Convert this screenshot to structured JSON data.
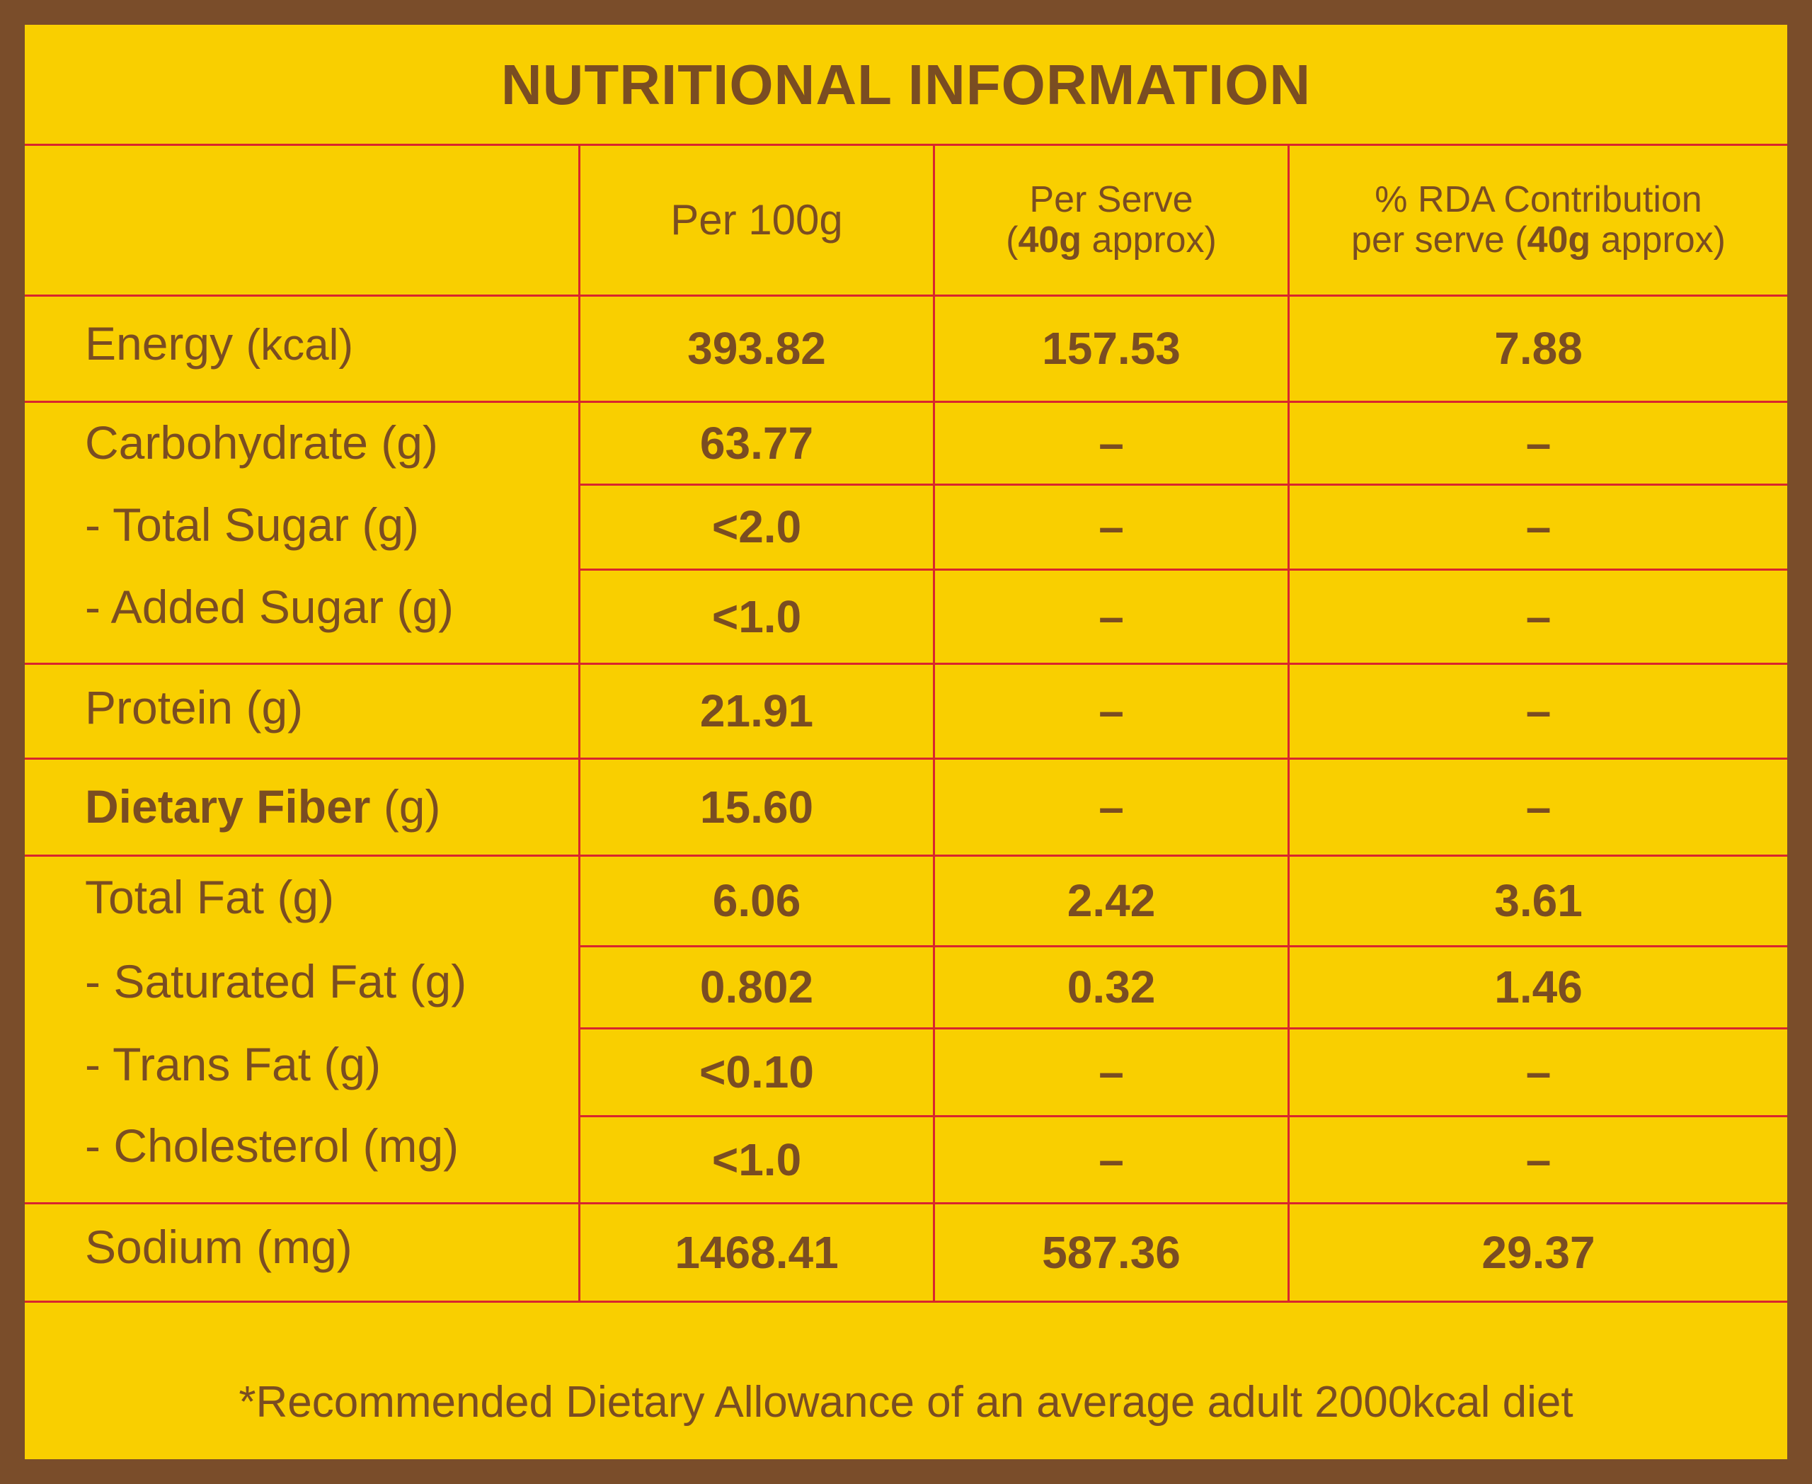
{
  "title": "NUTRITIONAL INFORMATION",
  "header": {
    "col1": "Per 100g",
    "col2_line1": "Per Serve",
    "col2_l2_open": "(",
    "col2_l2_bold": "40g",
    "col2_l2_rest": " approx)",
    "col3_line1": "% RDA Contribution",
    "col3_l2_pre": "per serve (",
    "col3_l2_bold": "40g",
    "col3_l2_rest": " approx)"
  },
  "rows": [
    {
      "name": "Energy",
      "unit": "(kcal)",
      "per100": "393.82",
      "serve": "157.53",
      "rda": "7.88"
    },
    {
      "name": "Carbohydrate",
      "unit": "(g)",
      "per100": "63.77",
      "serve": "–",
      "rda": "–"
    },
    {
      "name": "- Total Sugar",
      "unit": "(g)",
      "per100": "<2.0",
      "serve": "–",
      "rda": "–"
    },
    {
      "name": "- Added Sugar",
      "unit": "(g)",
      "per100": "<1.0",
      "serve": "–",
      "rda": "–"
    },
    {
      "name": "Protein",
      "unit": "(g)",
      "per100": "21.91",
      "serve": "–",
      "rda": "–"
    },
    {
      "name": "Dietary Fiber",
      "unit": "(g)",
      "per100": "15.60",
      "serve": "–",
      "rda": "–"
    },
    {
      "name": "Total Fat",
      "unit": "(g)",
      "per100": "6.06",
      "serve": "2.42",
      "rda": "3.61"
    },
    {
      "name": "- Saturated Fat",
      "unit": "(g)",
      "per100": "0.802",
      "serve": "0.32",
      "rda": "1.46"
    },
    {
      "name": "- Trans Fat",
      "unit": "(g)",
      "per100": "<0.10",
      "serve": "–",
      "rda": "–"
    },
    {
      "name": "- Cholesterol",
      "unit": "(mg)",
      "per100": "<1.0",
      "serve": "–",
      "rda": "–"
    },
    {
      "name": "Sodium",
      "unit": "(mg)",
      "per100": "1468.41",
      "serve": "587.36",
      "rda": "29.37"
    }
  ],
  "footnote": "*Recommended Dietary Allowance of an average adult 2000kcal diet",
  "colors": {
    "border": "#7a4d2a",
    "background": "#f9cf00",
    "grid": "#d8262e",
    "text": "#7a4d22"
  }
}
